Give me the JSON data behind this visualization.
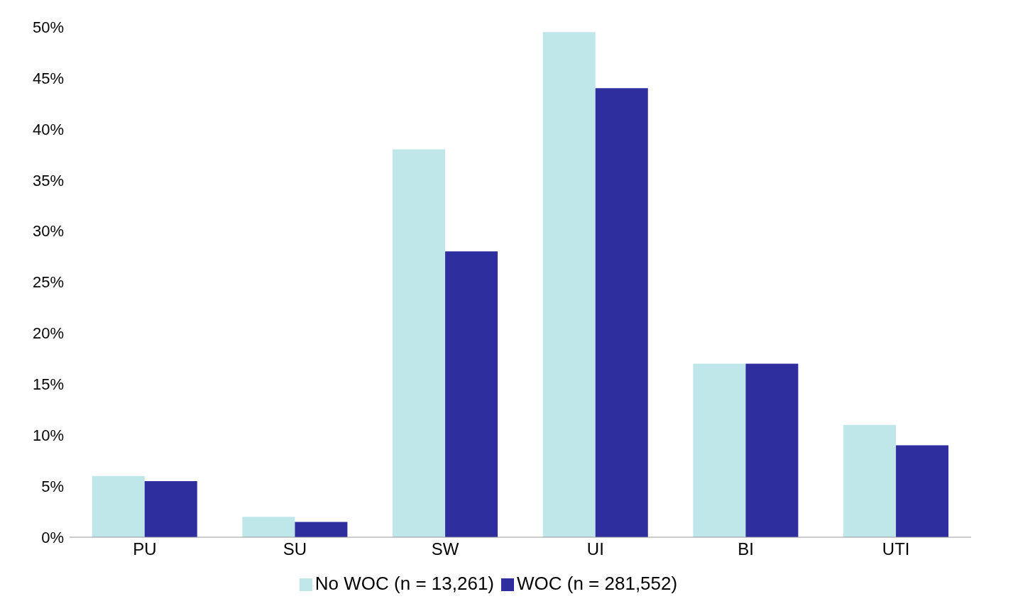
{
  "chart_data": {
    "type": "bar",
    "categories": [
      "PU",
      "SU",
      "SW",
      "UI",
      "BI",
      "UTI"
    ],
    "series": [
      {
        "name": "No WOC (n = 13,261)",
        "color": "#bfe6e8",
        "values": [
          6,
          2,
          38,
          49.5,
          17,
          11
        ]
      },
      {
        "name": "WOC (n = 281,552)",
        "color": "#2e2e9e",
        "values": [
          5.5,
          1.5,
          28,
          44,
          17,
          9
        ]
      }
    ],
    "ylim": [
      0,
      50
    ],
    "yticks": [
      {
        "value": 0,
        "label": "0%"
      },
      {
        "value": 5,
        "label": "5%"
      },
      {
        "value": 10,
        "label": "10%"
      },
      {
        "value": 15,
        "label": "15%"
      },
      {
        "value": 20,
        "label": "20%"
      },
      {
        "value": 25,
        "label": "25%"
      },
      {
        "value": 30,
        "label": "30%"
      },
      {
        "value": 35,
        "label": "35%"
      },
      {
        "value": 40,
        "label": "40%"
      },
      {
        "value": 45,
        "label": "45%"
      },
      {
        "value": 50,
        "label": "50%"
      }
    ],
    "grid": false,
    "legend": "bottom"
  }
}
